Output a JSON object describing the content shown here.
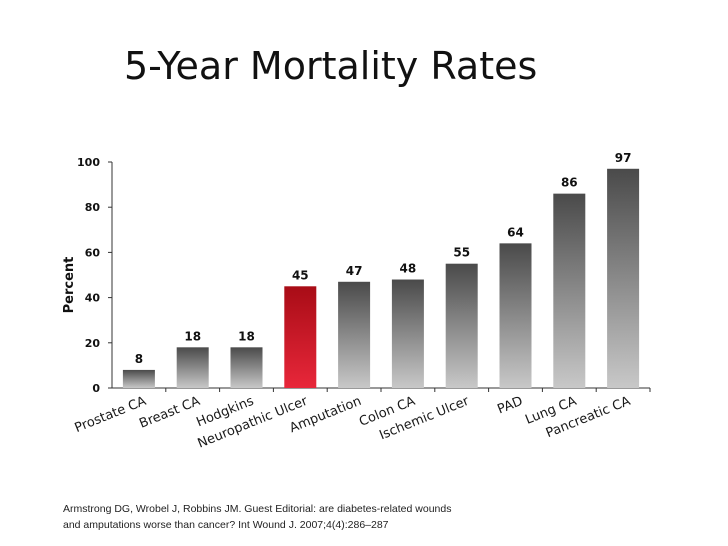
{
  "slide": {
    "title": "5-Year Mortality Rates",
    "citation_line1": "Armstrong DG, Wrobel J, Robbins JM. Guest Editorial: are diabetes-related wounds",
    "citation_line2": "and amputations worse than cancer? Int Wound J. 2007;4(4):286–287"
  },
  "chart_data": {
    "type": "bar",
    "title": "5-Year Mortality Rates",
    "xlabel": "",
    "ylabel": "Percent",
    "ylim": [
      0,
      100
    ],
    "yticks": [
      0,
      20,
      40,
      60,
      80,
      100
    ],
    "grid": false,
    "categories": [
      "Prostate CA",
      "Breast CA",
      "Hodgkins",
      "Neuropathic Ulcer",
      "Amputation",
      "Colon CA",
      "Ischemic Ulcer",
      "PAD",
      "Lung CA",
      "Pancreatic CA"
    ],
    "values": [
      8,
      18,
      18,
      45,
      47,
      48,
      55,
      64,
      86,
      97
    ],
    "highlight_category": "Neuropathic Ulcer",
    "colors": {
      "bar_top": "#4a4a4a",
      "bar_bottom": "#c8c8c8",
      "highlight_top": "#a80c16",
      "highlight_bottom": "#e8273a",
      "axis": "#333333"
    }
  }
}
